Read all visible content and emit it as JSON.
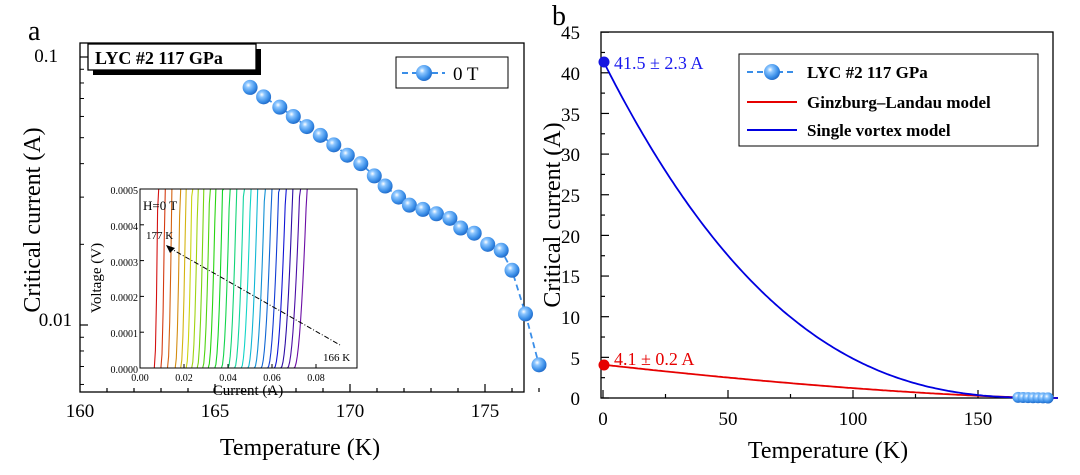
{
  "colors": {
    "marker": "#3a8ee8",
    "marker_dark": "#1d64c2",
    "gl_line": "#e60000",
    "sv_line": "#0000e0",
    "gl_label": "#e60000",
    "sv_label": "#1a1aee"
  },
  "panel_a": {
    "letter": "a",
    "tag": "LYC #2 117 GPa",
    "legend": "0 T",
    "xlabel": "Temperature (K)",
    "ylabel": "Critical current (A)",
    "xticks": [
      "160",
      "165",
      "170",
      "175"
    ],
    "yticks": [
      "0.01",
      "0.1"
    ]
  },
  "panel_b": {
    "letter": "b",
    "xlabel": "Temperature (K)",
    "ylabel": "Critical current (A)",
    "xticks": [
      "0",
      "50",
      "100",
      "150"
    ],
    "yticks": [
      "0",
      "5",
      "10",
      "15",
      "20",
      "25",
      "30",
      "35",
      "40",
      "45"
    ],
    "legend": [
      "LYC #2 117 GPa",
      "Ginzburg–Landau model",
      "Single vortex model"
    ],
    "annot_sv": "41.5 ± 2.3 A",
    "annot_gl": "4.1 ± 0.2 A"
  },
  "inset": {
    "field": "H=0 T",
    "label_top": "177 K",
    "label_bottom": "166 K",
    "xlabel": "Current (A)",
    "ylabel": "Voltage (V)",
    "xticks": [
      "0.00",
      "0.02",
      "0.04",
      "0.06",
      "0.08"
    ],
    "yticks": [
      "0.0000",
      "0.0001",
      "0.0002",
      "0.0003",
      "0.0004",
      "0.0005"
    ]
  },
  "chart_data": [
    {
      "panel": "a",
      "type": "scatter",
      "xscale": "linear",
      "yscale": "log",
      "xlim": [
        160,
        178
      ],
      "ylim": [
        0.0055,
        0.13
      ],
      "series": [
        {
          "name": "0 T",
          "x": [
            166.3,
            166.8,
            167.4,
            167.9,
            168.4,
            168.9,
            169.4,
            169.9,
            170.4,
            170.9,
            171.3,
            171.8,
            172.2,
            172.7,
            173.2,
            173.7,
            174.1,
            174.6,
            175.1,
            175.6,
            176.0,
            176.5,
            177.0
          ],
          "y": [
            0.077,
            0.071,
            0.065,
            0.06,
            0.055,
            0.051,
            0.047,
            0.043,
            0.04,
            0.036,
            0.033,
            0.03,
            0.028,
            0.027,
            0.026,
            0.025,
            0.023,
            0.022,
            0.02,
            0.019,
            0.016,
            0.011,
            0.0071
          ]
        }
      ]
    },
    {
      "panel": "a-inset",
      "type": "line",
      "xlim": [
        0,
        0.09
      ],
      "ylim": [
        0,
        0.0005
      ],
      "temperature_range": [
        "177 K",
        "166 K"
      ],
      "series": [
        {
          "T": 177,
          "onset": 0.0065
        },
        {
          "T": 176.5,
          "onset": 0.0095
        },
        {
          "T": 176,
          "onset": 0.0125
        },
        {
          "T": 175.5,
          "onset": 0.016
        },
        {
          "T": 175,
          "onset": 0.0185
        },
        {
          "T": 174.5,
          "onset": 0.021
        },
        {
          "T": 174,
          "onset": 0.0235
        },
        {
          "T": 173.5,
          "onset": 0.026
        },
        {
          "T": 173,
          "onset": 0.0285
        },
        {
          "T": 172.5,
          "onset": 0.031
        },
        {
          "T": 172,
          "onset": 0.034
        },
        {
          "T": 171.5,
          "onset": 0.037
        },
        {
          "T": 171,
          "onset": 0.04
        },
        {
          "T": 170.5,
          "onset": 0.043
        },
        {
          "T": 170,
          "onset": 0.046
        },
        {
          "T": 169.5,
          "onset": 0.049
        },
        {
          "T": 169,
          "onset": 0.052
        },
        {
          "T": 168.5,
          "onset": 0.055
        },
        {
          "T": 168,
          "onset": 0.058
        },
        {
          "T": 167.5,
          "onset": 0.061
        },
        {
          "T": 167,
          "onset": 0.064
        },
        {
          "T": 166.5,
          "onset": 0.067
        },
        {
          "T": 166,
          "onset": 0.07
        }
      ]
    },
    {
      "panel": "b",
      "type": "line",
      "xlim": [
        0,
        182
      ],
      "ylim": [
        0,
        45
      ],
      "series": [
        {
          "name": "LYC #2 117 GPa",
          "x": [
            166,
            168,
            170,
            172,
            174,
            176,
            178,
            180
          ],
          "y": [
            0.077,
            0.06,
            0.047,
            0.036,
            0.028,
            0.023,
            0.016,
            0.007
          ]
        },
        {
          "name": "Ginzburg–Landau model",
          "Ic0": 4.1,
          "Tc": 180
        },
        {
          "name": "Single vortex model",
          "Ic0": 41.5,
          "Tc": 180
        }
      ],
      "annotations": [
        "41.5 ± 2.3 A",
        "4.1 ± 0.2 A"
      ]
    }
  ]
}
